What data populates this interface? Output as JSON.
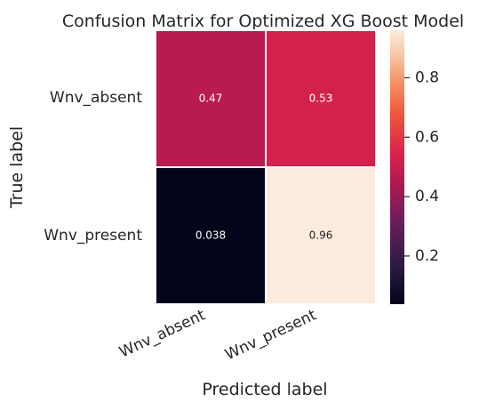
{
  "chart_data": {
    "type": "heatmap",
    "title": "Confusion Matrix for Optimized XG Boost Model",
    "xlabel": "Predicted label",
    "ylabel": "True label",
    "x_categories": [
      "Wnv_absent",
      "Wnv_present"
    ],
    "y_categories": [
      "Wnv_absent",
      "Wnv_present"
    ],
    "values": [
      [
        0.47,
        0.53
      ],
      [
        0.038,
        0.96
      ]
    ],
    "value_labels": [
      [
        "0.47",
        "0.53"
      ],
      [
        "0.038",
        "0.96"
      ]
    ],
    "colorbar": {
      "range": [
        0.038,
        0.96
      ],
      "ticks": [
        0.2,
        0.4,
        0.6,
        0.8
      ],
      "tick_labels": [
        "0.2",
        "0.4",
        "0.6",
        "0.8"
      ]
    },
    "colormap": "rocket",
    "annotation_colors": {
      "dark_cell": "#ffffff",
      "light_cell": "#262626"
    },
    "grid": false,
    "legend": "colorbar-right"
  }
}
